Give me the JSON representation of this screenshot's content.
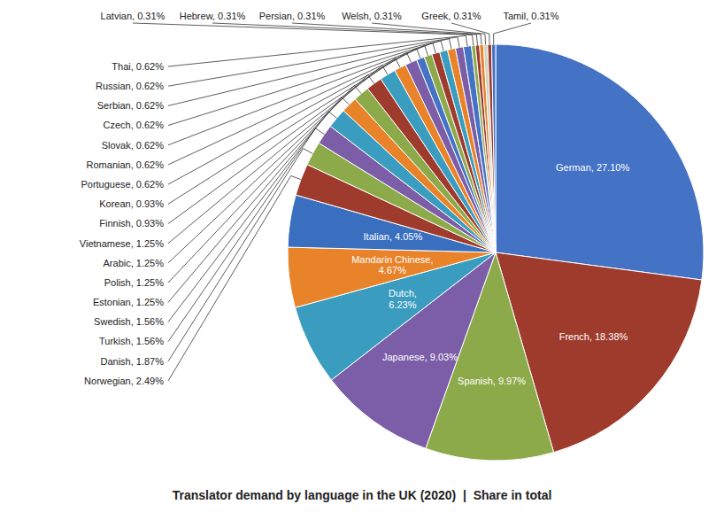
{
  "chart_data": {
    "type": "pie",
    "title": "Translator demand by language in the UK (2020)  |  Share in total",
    "values": [
      27.1,
      18.38,
      9.97,
      9.03,
      6.23,
      4.67,
      4.05,
      2.49,
      1.87,
      1.56,
      1.56,
      1.25,
      1.25,
      1.25,
      1.25,
      0.93,
      0.93,
      0.62,
      0.62,
      0.62,
      0.62,
      0.62,
      0.62,
      0.62,
      0.31,
      0.31,
      0.31,
      0.31,
      0.31,
      0.31
    ],
    "value_labels": [
      "German, 27.10%",
      "French, 18.38%",
      "Spanish, 9.97%",
      "Japanese, 9.03%",
      "Dutch,\n6.23%",
      "Mandarin Chinese,\n4.67%",
      "Italian, 4.05%",
      "Norwegian, 2.49%",
      "Danish, 1.87%",
      "Turkish, 1.56%",
      "Swedish, 1.56%",
      "Estonian, 1.25%",
      "Polish, 1.25%",
      "Arabic, 1.25%",
      "Vietnamese, 1.25%",
      "Finnish, 0.93%",
      "Korean, 0.93%",
      "Portuguese, 0.62%",
      "Romanian, 0.62%",
      "Slovak, 0.62%",
      "Czech, 0.62%",
      "Serbian, 0.62%",
      "Russian, 0.62%",
      "Thai, 0.62%",
      "Latvian, 0.31%",
      "Hebrew, 0.31%",
      "Persian, 0.31%",
      "Welsh, 0.31%",
      "Greek, 0.31%",
      "Tamil, 0.31%"
    ],
    "colors": [
      "#4472C4",
      "#9E3B2C",
      "#8DAA4A",
      "#7B5EA7",
      "#3A9DBF",
      "#E8832A",
      "#3A6FBF",
      "#9E3B2C",
      "#8DAA4A",
      "#7B5EA7",
      "#3A9DBF",
      "#E8832A",
      "#8DAA4A",
      "#9E3B2C",
      "#3A9DBF",
      "#E8832A",
      "#7B5EA7",
      "#4472C4",
      "#8DAA4A",
      "#9E3B2C",
      "#3A9DBF",
      "#E8832A",
      "#7B5EA7",
      "#4472C4",
      "#8DAA4A",
      "#9E3B2C",
      "#E8832A",
      "#D3D3C0",
      "#9E3B2C",
      "#4472C4"
    ],
    "data_labels": true
  }
}
